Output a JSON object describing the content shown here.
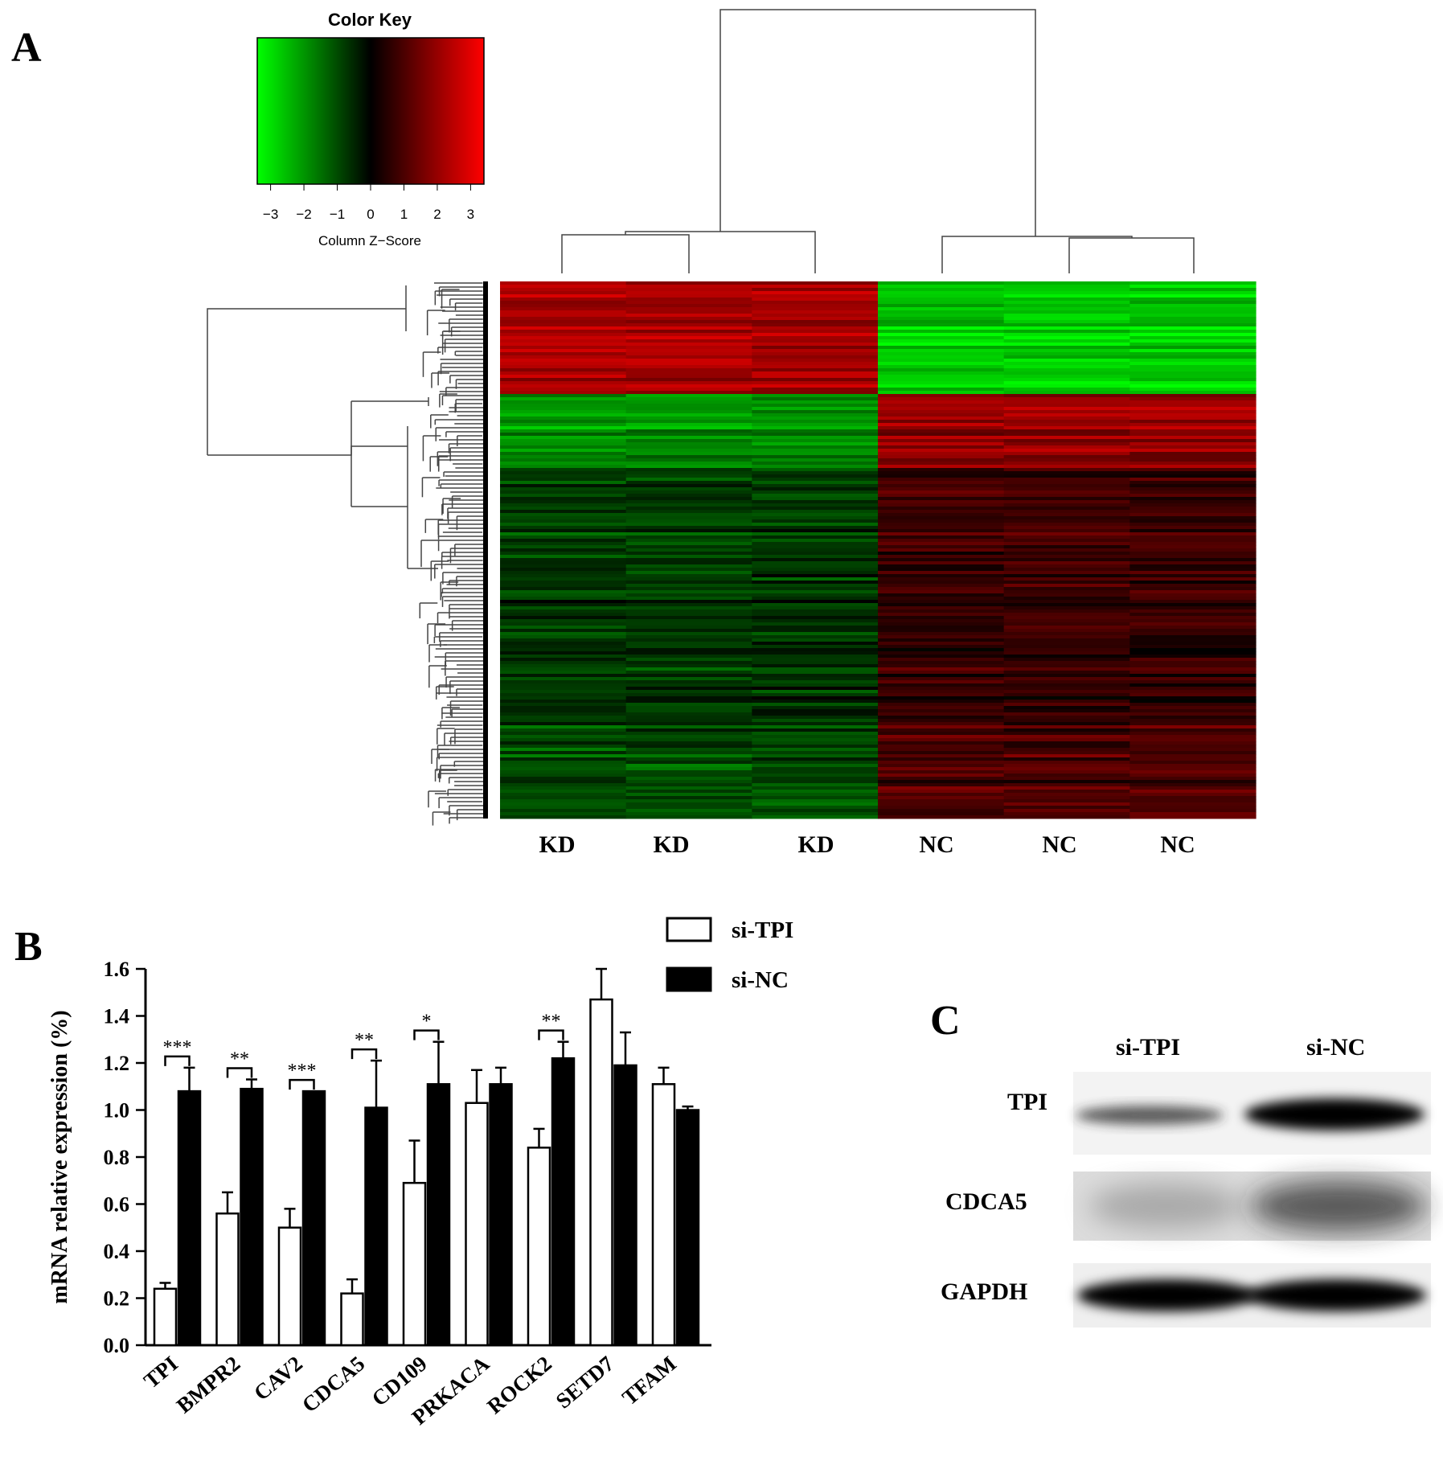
{
  "panels": {
    "a": "A",
    "b": "B",
    "c": "C"
  },
  "chart_data": [
    {
      "type": "heatmap",
      "panel": "A",
      "color_key": {
        "title": "Color Key",
        "xlabel": "Column Z−Score",
        "ticks": [
          "−3",
          "−2",
          "−1",
          "0",
          "1",
          "2",
          "3"
        ],
        "range": [
          -3.4,
          3.4
        ],
        "colors": {
          "low": "#00ff00",
          "mid": "#000000",
          "high": "#ff0000"
        }
      },
      "columns": [
        "KD",
        "KD",
        "KD",
        "NC",
        "NC",
        "NC"
      ],
      "column_dendrogram": "two clusters: KD vs NC",
      "row_dendrogram": true
    },
    {
      "type": "bar",
      "panel": "B",
      "ylabel": "mRNA relative expression (%)",
      "ylim": [
        0,
        1.6
      ],
      "yticks": [
        "0.0",
        "0.2",
        "0.4",
        "0.6",
        "0.8",
        "1.0",
        "1.2",
        "1.4",
        "1.6"
      ],
      "categories": [
        "TPI",
        "BMPR2",
        "CAV2",
        "CDCA5",
        "CD109",
        "PRKACA",
        "ROCK2",
        "SETD7",
        "TFAM"
      ],
      "series": [
        {
          "name": "si-TPI",
          "fill": "#ffffff",
          "values": [
            0.24,
            0.56,
            0.5,
            0.22,
            0.69,
            1.03,
            0.84,
            1.47,
            1.11
          ],
          "errors": [
            0.025,
            0.09,
            0.08,
            0.06,
            0.18,
            0.14,
            0.08,
            0.13,
            0.07
          ]
        },
        {
          "name": "si-NC",
          "fill": "#000000",
          "values": [
            1.08,
            1.09,
            1.08,
            1.01,
            1.11,
            1.11,
            1.22,
            1.19,
            1.0
          ],
          "errors": [
            0.1,
            0.04,
            0.0,
            0.2,
            0.18,
            0.07,
            0.07,
            0.14,
            0.015
          ]
        }
      ],
      "significance": [
        "***",
        "**",
        "***",
        "**",
        "*",
        "",
        "**",
        "",
        ""
      ],
      "legend_position": "top-right"
    }
  ],
  "blot": {
    "columns": [
      "si-TPI",
      "si-NC"
    ],
    "rows": [
      "TPI",
      "CDCA5",
      "GAPDH"
    ]
  }
}
